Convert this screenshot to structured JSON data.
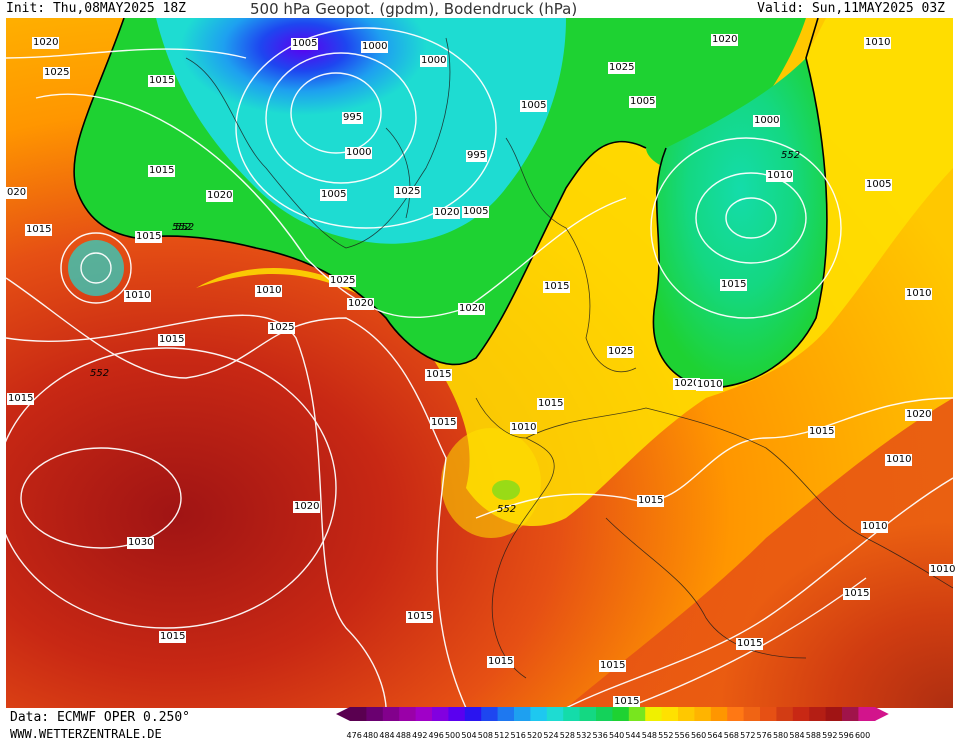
{
  "header": {
    "init": "Init: Thu,08MAY2025 18Z",
    "title": "500 hPa Geopot. (gpdm), Bodendruck (hPa)",
    "valid": "Valid: Sun,11MAY2025 03Z"
  },
  "footer": {
    "data_source": "Data: ECMWF OPER 0.250°",
    "website": "WWW.WETTERZENTRALE.DE"
  },
  "colors": {
    "colorbar": [
      "#5a0050",
      "#6a0070",
      "#82008c",
      "#9a00a8",
      "#a000c8",
      "#8200e0",
      "#5a00f0",
      "#2a14f0",
      "#1e46f0",
      "#1e78f0",
      "#1ea0f0",
      "#1ec8f0",
      "#1edcd2",
      "#14dcaa",
      "#14d882",
      "#14d25a",
      "#1ed232",
      "#78e61e",
      "#f0f000",
      "#ffe100",
      "#ffc800",
      "#ffb400",
      "#ff9600",
      "#ff7814",
      "#f06414",
      "#e65014",
      "#d23c14",
      "#c82814",
      "#b41e14",
      "#a01414",
      "#a0144a",
      "#d2148c"
    ]
  },
  "colorbar_labels": [
    "476",
    "480",
    "484",
    "488",
    "492",
    "496",
    "500",
    "504",
    "508",
    "512",
    "516",
    "520",
    "524",
    "528",
    "532",
    "536",
    "540",
    "544",
    "548",
    "552",
    "556",
    "560",
    "564",
    "568",
    "572",
    "576",
    "580",
    "584",
    "588",
    "592",
    "596",
    "600"
  ],
  "isobar_labels": [
    "1020",
    "1025",
    "1015",
    "1005",
    "1000",
    "1000",
    "995",
    "1000",
    "995",
    "1005",
    "1020",
    "1025",
    "1010",
    "1015",
    "1020",
    "1005",
    "1025",
    "1020",
    "1005",
    "1005",
    "1000",
    "552",
    "1010",
    "1005",
    "1015",
    "1015",
    "1010",
    "1015",
    "1025",
    "1020",
    "1020",
    "1010",
    "1025",
    "1015",
    "1015",
    "1010",
    "552",
    "1015",
    "1030",
    "1020",
    "1020",
    "1015",
    "1015",
    "1015",
    "1025",
    "1010",
    "1015",
    "1015",
    "1010",
    "1010",
    "1015",
    "1015",
    "552",
    "1015",
    "1015",
    "020",
    "1020",
    "552",
    "1015",
    "1015",
    "1010",
    "1015",
    "552",
    "1010"
  ],
  "contour_552": "552"
}
